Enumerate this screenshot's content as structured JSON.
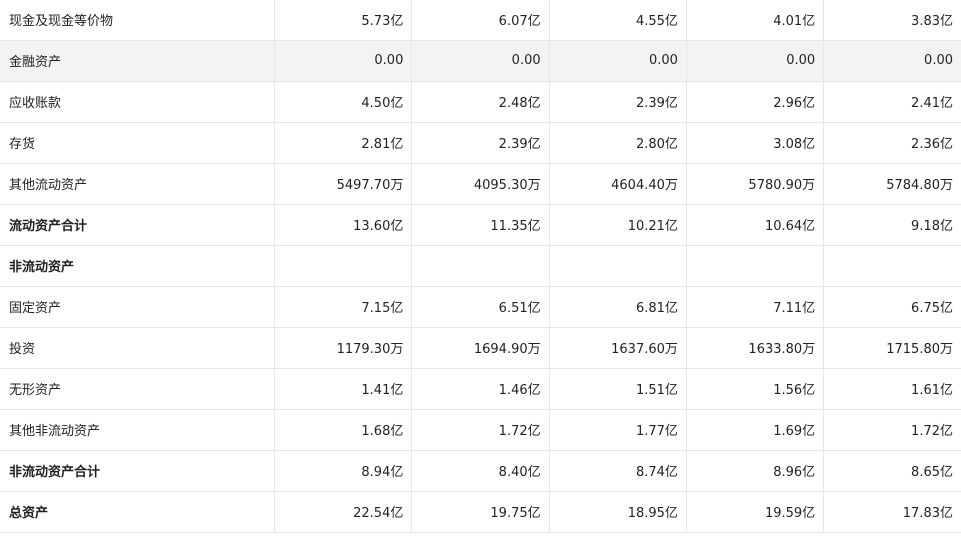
{
  "table": {
    "rows": [
      {
        "label": "现金及现金等价物",
        "values": [
          "5.73亿",
          "6.07亿",
          "4.55亿",
          "4.01亿",
          "3.83亿"
        ]
      },
      {
        "label": "金融资产",
        "values": [
          "0.00",
          "0.00",
          "0.00",
          "0.00",
          "0.00"
        ]
      },
      {
        "label": "应收账款",
        "values": [
          "4.50亿",
          "2.48亿",
          "2.39亿",
          "2.96亿",
          "2.41亿"
        ]
      },
      {
        "label": "存货",
        "values": [
          "2.81亿",
          "2.39亿",
          "2.80亿",
          "3.08亿",
          "2.36亿"
        ]
      },
      {
        "label": "其他流动资产",
        "values": [
          "5497.70万",
          "4095.30万",
          "4604.40万",
          "5780.90万",
          "5784.80万"
        ]
      },
      {
        "label": "流动资产合计",
        "values": [
          "13.60亿",
          "11.35亿",
          "10.21亿",
          "10.64亿",
          "9.18亿"
        ]
      },
      {
        "label": "非流动资产",
        "values": [
          "",
          "",
          "",
          "",
          ""
        ]
      },
      {
        "label": "固定资产",
        "values": [
          "7.15亿",
          "6.51亿",
          "6.81亿",
          "7.11亿",
          "6.75亿"
        ]
      },
      {
        "label": "投资",
        "values": [
          "1179.30万",
          "1694.90万",
          "1637.60万",
          "1633.80万",
          "1715.80万"
        ]
      },
      {
        "label": "无形资产",
        "values": [
          "1.41亿",
          "1.46亿",
          "1.51亿",
          "1.56亿",
          "1.61亿"
        ]
      },
      {
        "label": "其他非流动资产",
        "values": [
          "1.68亿",
          "1.72亿",
          "1.77亿",
          "1.69亿",
          "1.72亿"
        ]
      },
      {
        "label": "非流动资产合计",
        "values": [
          "8.94亿",
          "8.40亿",
          "8.74亿",
          "8.96亿",
          "8.65亿"
        ]
      },
      {
        "label": "总资产",
        "values": [
          "22.54亿",
          "19.75亿",
          "18.95亿",
          "19.59亿",
          "17.83亿"
        ]
      }
    ]
  }
}
